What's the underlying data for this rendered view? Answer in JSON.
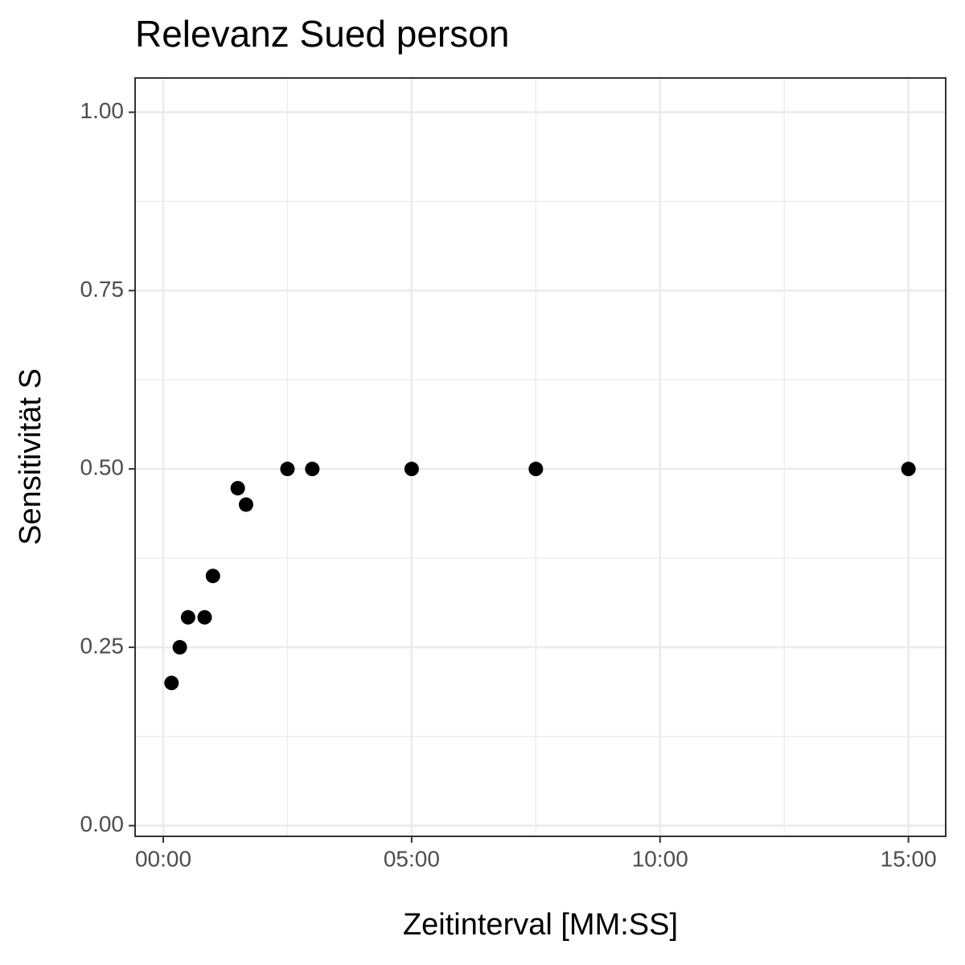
{
  "chart_data": {
    "type": "scatter",
    "title": "Relevanz Sued person",
    "x_label": "Zeitinterval [MM:SS]",
    "y_label": "Sensitivität S",
    "x": [
      10,
      20,
      30,
      50,
      60,
      90,
      100,
      150,
      180,
      300,
      450,
      900
    ],
    "values": [
      0.2,
      0.25,
      0.292,
      0.292,
      0.35,
      0.473,
      0.45,
      0.5,
      0.5,
      0.5,
      0.5,
      0.5
    ],
    "color": "#000000",
    "xlim": [
      -34,
      945
    ],
    "ylim": [
      -0.015,
      1.048
    ],
    "xticks": [
      {
        "value": 0,
        "label": "00:00"
      },
      {
        "value": 300,
        "label": "05:00"
      },
      {
        "value": 600,
        "label": "10:00"
      },
      {
        "value": 900,
        "label": "15:00"
      }
    ],
    "yticks": [
      {
        "value": 0,
        "label": "0.00"
      },
      {
        "value": 0.25,
        "label": "0.25"
      },
      {
        "value": 0.5,
        "label": "0.50"
      },
      {
        "value": 0.75,
        "label": "0.75"
      },
      {
        "value": 1,
        "label": "1.00"
      }
    ],
    "grid": true
  }
}
